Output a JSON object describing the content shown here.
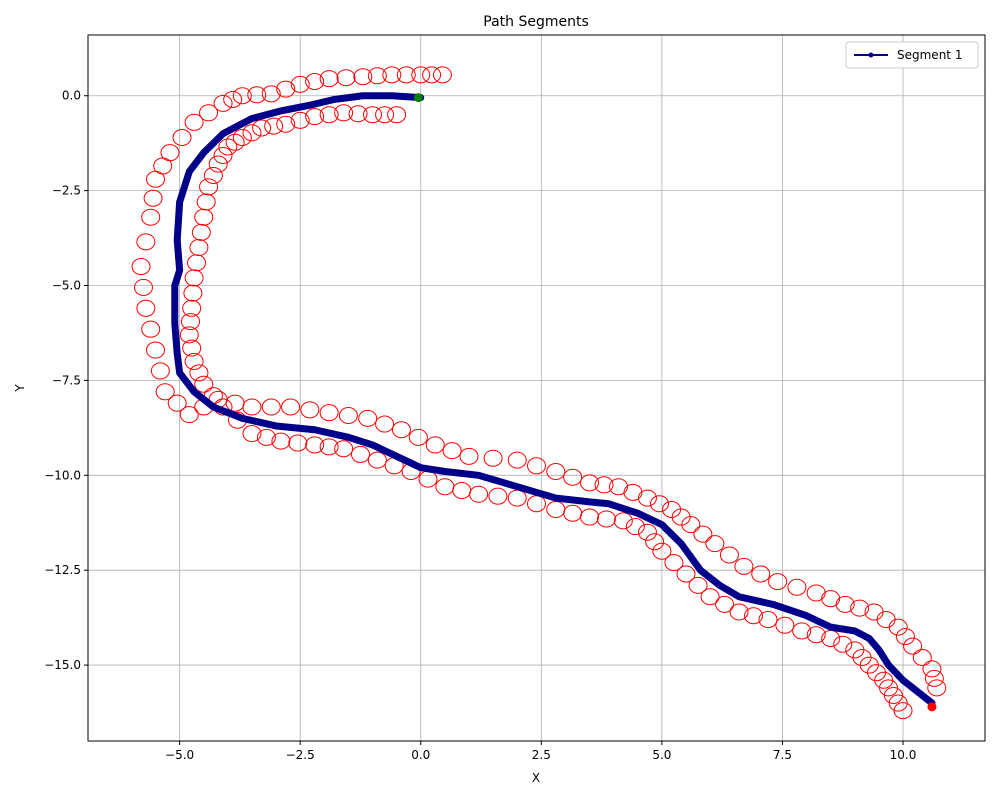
{
  "chart_data": {
    "type": "line",
    "title": "Path Segments",
    "xlabel": "X",
    "ylabel": "Y",
    "xlim": [
      -6.9,
      11.7
    ],
    "ylim": [
      -17.0,
      1.6
    ],
    "xticks": [
      -5.0,
      -2.5,
      0.0,
      2.5,
      5.0,
      7.5,
      10.0,
      12.5
    ],
    "xtick_labels": [
      "−5.0",
      "−2.5",
      "0.0",
      "2.5",
      "5.0",
      "7.5",
      "10.0"
    ],
    "yticks": [
      0.0,
      -2.5,
      -5.0,
      -7.5,
      -10.0,
      -12.5,
      -15.0
    ],
    "ytick_labels": [
      "0.0",
      "−2.5",
      "−5.0",
      "−7.5",
      "−10.0",
      "−12.5",
      "−15.0"
    ],
    "grid": true,
    "legend_position": "top-right",
    "series": [
      {
        "name": "Segment 1",
        "color": "#00008b",
        "x": [
          0.0,
          -0.6,
          -1.2,
          -1.8,
          -2.3,
          -2.9,
          -3.5,
          -4.1,
          -4.5,
          -4.8,
          -5.0,
          -5.05,
          -5.0,
          -5.1,
          -5.1,
          -5.05,
          -5.0,
          -4.7,
          -4.3,
          -3.7,
          -3.0,
          -2.2,
          -1.5,
          -1.0,
          -0.5,
          0.0,
          0.5,
          1.2,
          2.0,
          2.8,
          3.5,
          3.9,
          4.5,
          5.0,
          5.4,
          5.8,
          6.2,
          6.6,
          7.3,
          8.0,
          8.5,
          9.0,
          9.3,
          9.5,
          9.7,
          10.0,
          10.3,
          10.6
        ],
        "y": [
          -0.05,
          0.0,
          0.0,
          -0.1,
          -0.25,
          -0.4,
          -0.6,
          -1.0,
          -1.5,
          -2.0,
          -2.8,
          -3.8,
          -4.6,
          -5.0,
          -6.0,
          -6.8,
          -7.3,
          -7.8,
          -8.2,
          -8.5,
          -8.7,
          -8.8,
          -9.0,
          -9.2,
          -9.5,
          -9.8,
          -9.9,
          -10.0,
          -10.3,
          -10.6,
          -10.7,
          -10.75,
          -11.0,
          -11.3,
          -11.8,
          -12.5,
          -12.9,
          -13.2,
          -13.4,
          -13.7,
          -14.0,
          -14.1,
          -14.3,
          -14.6,
          -15.0,
          -15.4,
          -15.7,
          -16.0
        ]
      }
    ],
    "start_point": {
      "x": -0.05,
      "y": -0.05,
      "color": "#008000"
    },
    "end_point": {
      "x": 10.6,
      "y": -16.1,
      "color": "#ff0000"
    },
    "boundary_color": "#ff0000",
    "boundary_left": {
      "x": [
        0.45,
        0.0,
        -0.6,
        -1.2,
        -1.9,
        -2.5,
        -3.1,
        -3.7,
        -4.1,
        -4.7,
        -5.2,
        -5.5,
        -5.6,
        -5.8,
        -5.7,
        -5.5,
        -5.3,
        -4.8,
        -4.2,
        -3.5,
        -2.7,
        -1.9,
        -1.1,
        -0.4,
        0.3,
        1.0,
        2.0,
        2.8,
        3.5,
        4.1,
        4.7,
        5.2,
        5.6,
        6.1,
        6.7,
        7.4,
        8.2,
        8.8,
        9.4,
        9.9,
        10.2,
        10.6,
        10.7
      ],
      "y": [
        0.55,
        0.55,
        0.55,
        0.5,
        0.45,
        0.3,
        0.05,
        0.0,
        -0.2,
        -0.7,
        -1.5,
        -2.2,
        -3.2,
        -4.5,
        -5.6,
        -6.7,
        -7.8,
        -8.4,
        -8.0,
        -8.2,
        -8.2,
        -8.35,
        -8.5,
        -8.8,
        -9.2,
        -9.5,
        -9.6,
        -9.9,
        -10.2,
        -10.3,
        -10.6,
        -10.9,
        -11.3,
        -11.8,
        -12.4,
        -12.8,
        -13.1,
        -13.4,
        -13.6,
        -14.0,
        -14.5,
        -15.1,
        -15.6
      ]
    },
    "boundary_right": {
      "x": [
        -0.5,
        -1.0,
        -1.6,
        -2.2,
        -2.8,
        -3.3,
        -3.7,
        -4.0,
        -4.2,
        -4.4,
        -4.5,
        -4.6,
        -4.7,
        -4.75,
        -4.8,
        -4.7,
        -4.5,
        -4.1,
        -3.5,
        -2.9,
        -2.2,
        -1.6,
        -0.9,
        -0.2,
        0.5,
        1.2,
        2.0,
        2.8,
        3.5,
        4.2,
        4.7,
        5.0,
        5.5,
        6.0,
        6.6,
        7.2,
        7.9,
        8.5,
        9.0,
        9.3,
        9.6,
        9.8,
        10.0
      ],
      "y": [
        -0.5,
        -0.5,
        -0.45,
        -0.55,
        -0.75,
        -0.85,
        -1.1,
        -1.35,
        -1.8,
        -2.4,
        -3.2,
        -4.0,
        -4.8,
        -5.6,
        -6.3,
        -7.0,
        -7.6,
        -8.2,
        -8.9,
        -9.1,
        -9.2,
        -9.3,
        -9.6,
        -9.9,
        -10.3,
        -10.5,
        -10.6,
        -10.9,
        -11.1,
        -11.2,
        -11.5,
        -12.0,
        -12.6,
        -13.2,
        -13.6,
        -13.8,
        -14.1,
        -14.3,
        -14.6,
        -15.0,
        -15.4,
        -15.8,
        -16.2
      ]
    }
  }
}
